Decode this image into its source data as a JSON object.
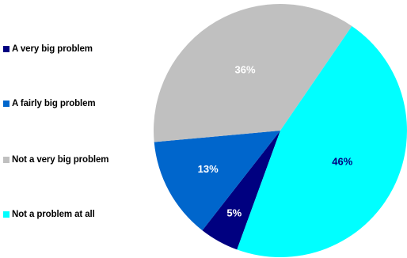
{
  "chart_data": {
    "type": "pie",
    "categories": [
      "A very big problem",
      "A fairly big problem",
      "Not a very big problem",
      "Not a problem at all"
    ],
    "values": [
      5,
      13,
      36,
      46
    ],
    "value_labels": [
      "5%",
      "13%",
      "36%",
      "46%"
    ],
    "colors": [
      "#000080",
      "#0066CC",
      "#C0C0C0",
      "#00FFFF"
    ],
    "label_colors": [
      "#ffffff",
      "#ffffff",
      "#ffffff",
      "#000080"
    ],
    "legend_position": "left"
  }
}
